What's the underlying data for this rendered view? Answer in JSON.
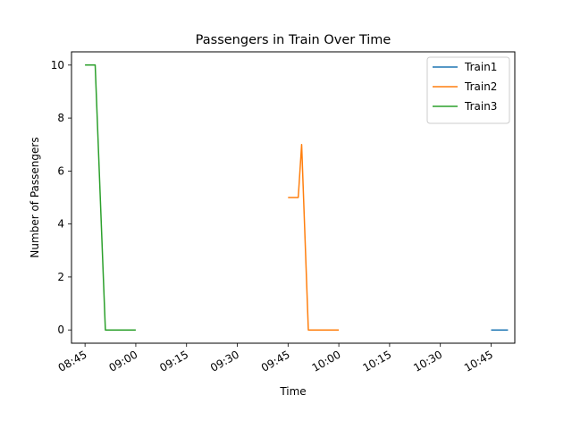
{
  "chart_data": {
    "type": "line",
    "title": "Passengers in Train Over Time",
    "xlabel": "Time",
    "ylabel": "Number of Passengers",
    "x_axis_type": "time",
    "xlim": [
      "08:41",
      "10:52"
    ],
    "ylim": [
      -0.5,
      10.5
    ],
    "x_ticks": [
      "08:45",
      "09:00",
      "09:15",
      "09:30",
      "09:45",
      "10:00",
      "10:15",
      "10:30",
      "10:45"
    ],
    "y_ticks": [
      0,
      2,
      4,
      6,
      8,
      10
    ],
    "grid": false,
    "legend_position": "top-right",
    "series": [
      {
        "name": "Train1",
        "color": "#1f77b4",
        "x": [
          "10:45",
          "10:50"
        ],
        "y": [
          0,
          0
        ]
      },
      {
        "name": "Train2",
        "color": "#ff7f0e",
        "x": [
          "09:45",
          "09:48",
          "09:49",
          "09:51",
          "10:00"
        ],
        "y": [
          5,
          5,
          7,
          0,
          0
        ]
      },
      {
        "name": "Train3",
        "color": "#2ca02c",
        "x": [
          "08:45",
          "08:48",
          "08:51",
          "09:00"
        ],
        "y": [
          10,
          10,
          0,
          0
        ]
      }
    ]
  }
}
